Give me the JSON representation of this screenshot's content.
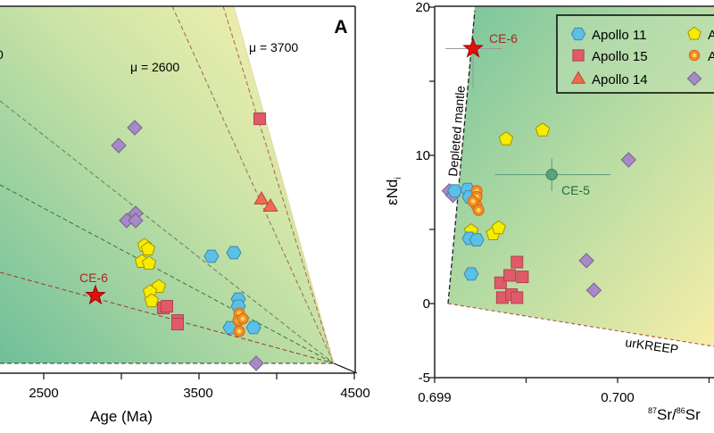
{
  "chart_data": [
    {
      "type": "scatter",
      "panel_label": "A",
      "xlabel": "Age (Ma)",
      "xlim": [
        2218,
        4500
      ],
      "x_ticks": [
        "2500",
        "3500",
        "4500"
      ],
      "ylabel": "",
      "ylim": [
        0,
        1
      ],
      "grid": false,
      "line_labels": [
        "μ = 2600",
        "μ = 3700",
        "0"
      ],
      "annotation": "CE-6",
      "series": [
        {
          "marker": "diamond",
          "color": "#a889c8",
          "points": [
            [
              3086,
              0.66
            ],
            [
              2983,
              0.61
            ],
            [
              3092,
              0.42
            ],
            [
              3034,
              0.4
            ],
            [
              3092,
              0.4
            ],
            [
              3868,
              0.0
            ]
          ]
        },
        {
          "marker": "square",
          "color": "#e05a6a",
          "points": [
            [
              3891,
              0.685
            ],
            [
              3270,
              0.155
            ],
            [
              3293,
              0.16
            ],
            [
              3362,
              0.12
            ],
            [
              3362,
              0.11
            ]
          ]
        },
        {
          "marker": "triangle",
          "color": "#ef6a50",
          "points": [
            [
              3902,
              0.46
            ],
            [
              3960,
              0.44
            ]
          ]
        },
        {
          "marker": "pentagon",
          "color": "#f6ec00",
          "points": [
            [
              3149,
              0.33
            ],
            [
              3172,
              0.32
            ],
            [
              3132,
              0.285
            ],
            [
              3178,
              0.28
            ],
            [
              3241,
              0.215
            ],
            [
              3184,
              0.2
            ],
            [
              3195,
              0.175
            ]
          ]
        },
        {
          "marker": "hexagon",
          "color": "#5bc0e6",
          "points": [
            [
              3580,
              0.3
            ],
            [
              3724,
              0.31
            ],
            [
              3753,
              0.18
            ],
            [
              3753,
              0.16
            ],
            [
              3701,
              0.1
            ],
            [
              3851,
              0.1
            ]
          ]
        },
        {
          "marker": "circle",
          "color": "#f28a2a",
          "points": [
            [
              3759,
              0.14
            ],
            [
              3753,
              0.12
            ],
            [
              3759,
              0.09
            ],
            [
              3782,
              0.125
            ]
          ]
        },
        {
          "marker": "star",
          "color": "#e01010",
          "points": [
            [
              2833,
              0.19
            ]
          ]
        }
      ]
    },
    {
      "type": "scatter",
      "xlabel_sup1": "87",
      "xlabel_mid": "Sr/",
      "xlabel_sup2": "86",
      "xlabel_end": "Sr",
      "ylabel": "εNd",
      "ylabel_sub": "i",
      "xlim": [
        0.699,
        0.70055
      ],
      "ylim": [
        -5,
        20
      ],
      "x_ticks": [
        "0.699",
        "0.700"
      ],
      "y_ticks": [
        "20",
        "10",
        "0",
        "-5"
      ],
      "grid": false,
      "legend_position": "top-right",
      "legend": [
        {
          "label": "Apollo 11",
          "marker": "hexagon"
        },
        {
          "label": "Apollo 15",
          "marker": "square"
        },
        {
          "label": "Apollo 14",
          "marker": "triangle"
        },
        {
          "label": "A",
          "marker": "pentagon"
        },
        {
          "label": "A",
          "marker": "circle"
        },
        {
          "label": "",
          "marker": "diamond"
        }
      ],
      "region_labels": [
        "Depleted mantle",
        "urKREEP"
      ],
      "annotations": [
        {
          "label": "CE-6",
          "x": 0.69921,
          "y": 17.2,
          "xerr": [
            0.69906,
            0.69937
          ],
          "yerr": [
            14.5,
            17.2
          ]
        },
        {
          "label": "CE-5",
          "x": 0.69964,
          "y": 8.7,
          "xerr": [
            0.69933,
            0.69996
          ],
          "yerr": [
            7.6,
            9.8
          ]
        }
      ],
      "series": [
        {
          "marker": "pentagon",
          "color": "#f6ec00",
          "points": [
            [
              0.69939,
              11.1
            ],
            [
              0.69959,
              11.7
            ],
            [
              0.6992,
              4.9
            ],
            [
              0.69932,
              4.7
            ],
            [
              0.69935,
              5.1
            ]
          ]
        },
        {
          "marker": "diamond",
          "color": "#a889c8",
          "points": [
            [
              0.69908,
              7.6
            ],
            [
              0.6991,
              7.3
            ],
            [
              0.70006,
              9.7
            ],
            [
              0.69983,
              2.9
            ],
            [
              0.69987,
              0.9
            ]
          ]
        },
        {
          "marker": "hexagon",
          "color": "#5bc0e6",
          "points": [
            [
              0.69911,
              7.6
            ],
            [
              0.69918,
              7.7
            ],
            [
              0.69919,
              7.2
            ],
            [
              0.69919,
              4.4
            ],
            [
              0.69923,
              4.3
            ],
            [
              0.6992,
              2.0
            ]
          ]
        },
        {
          "marker": "circle",
          "color": "#f28a2a",
          "points": [
            [
              0.69923,
              7.6
            ],
            [
              0.69923,
              7.2
            ],
            [
              0.69923,
              6.6
            ],
            [
              0.69924,
              6.3
            ],
            [
              0.69921,
              6.9
            ]
          ]
        },
        {
          "marker": "square",
          "color": "#e05a6a",
          "points": [
            [
              0.69936,
              1.4
            ],
            [
              0.69941,
              1.9
            ],
            [
              0.69945,
              2.8
            ],
            [
              0.69948,
              1.8
            ],
            [
              0.69937,
              0.4
            ],
            [
              0.69942,
              0.6
            ],
            [
              0.69945,
              0.4
            ]
          ]
        }
      ]
    }
  ]
}
